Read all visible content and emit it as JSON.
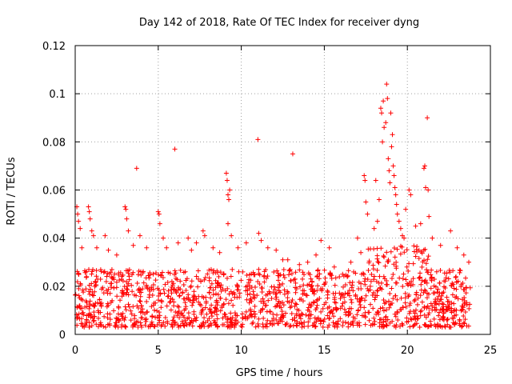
{
  "chart_data": {
    "type": "scatter",
    "title": "Day 142 of 2018, Rate Of TEC Index for receiver dyng",
    "xlabel": "GPS time / hours",
    "ylabel": "ROTI / TECUs",
    "xlim": [
      0,
      25
    ],
    "ylim": [
      0,
      0.12
    ],
    "xticks": [
      0,
      5,
      10,
      15,
      20,
      25
    ],
    "yticks": [
      0,
      0.02,
      0.04,
      0.06,
      0.08,
      0.1,
      0.12
    ],
    "xtick_labels": [
      "0",
      "5",
      "10",
      "15",
      "20",
      "25"
    ],
    "ytick_labels": [
      "0",
      "0.02",
      "0.04",
      "0.06",
      "0.08",
      "0.1",
      "0.12"
    ],
    "grid": true,
    "marker": "+",
    "series_color": "#ff0000",
    "background_cloud": {
      "x_range": [
        0,
        23.8
      ],
      "baseline_range": [
        0.003,
        0.027
      ],
      "note": "dense band of points between ~0.003 and ~0.027 across the whole day"
    },
    "series": [
      {
        "name": "ROTI",
        "points": [
          [
            0.1,
            0.053
          ],
          [
            0.15,
            0.05
          ],
          [
            0.2,
            0.047
          ],
          [
            0.3,
            0.044
          ],
          [
            0.4,
            0.036
          ],
          [
            0.8,
            0.053
          ],
          [
            0.85,
            0.051
          ],
          [
            0.9,
            0.048
          ],
          [
            1.0,
            0.043
          ],
          [
            1.1,
            0.041
          ],
          [
            1.3,
            0.036
          ],
          [
            1.8,
            0.041
          ],
          [
            2.0,
            0.035
          ],
          [
            2.5,
            0.033
          ],
          [
            3.0,
            0.053
          ],
          [
            3.05,
            0.052
          ],
          [
            3.1,
            0.048
          ],
          [
            3.2,
            0.043
          ],
          [
            3.5,
            0.037
          ],
          [
            3.7,
            0.069
          ],
          [
            3.9,
            0.041
          ],
          [
            4.3,
            0.036
          ],
          [
            5.0,
            0.051
          ],
          [
            5.05,
            0.05
          ],
          [
            5.1,
            0.046
          ],
          [
            5.3,
            0.04
          ],
          [
            5.5,
            0.036
          ],
          [
            6.0,
            0.077
          ],
          [
            6.2,
            0.038
          ],
          [
            6.8,
            0.04
          ],
          [
            7.0,
            0.035
          ],
          [
            7.3,
            0.038
          ],
          [
            7.7,
            0.043
          ],
          [
            7.8,
            0.041
          ],
          [
            8.3,
            0.036
          ],
          [
            8.7,
            0.034
          ],
          [
            9.1,
            0.067
          ],
          [
            9.15,
            0.064
          ],
          [
            9.2,
            0.058
          ],
          [
            9.25,
            0.056
          ],
          [
            9.3,
            0.06
          ],
          [
            9.2,
            0.046
          ],
          [
            9.4,
            0.041
          ],
          [
            9.8,
            0.036
          ],
          [
            10.3,
            0.038
          ],
          [
            11.0,
            0.081
          ],
          [
            11.05,
            0.042
          ],
          [
            11.2,
            0.039
          ],
          [
            11.6,
            0.036
          ],
          [
            12.1,
            0.035
          ],
          [
            12.5,
            0.031
          ],
          [
            12.8,
            0.031
          ],
          [
            13.1,
            0.075
          ],
          [
            13.5,
            0.029
          ],
          [
            14.0,
            0.03
          ],
          [
            14.5,
            0.033
          ],
          [
            14.8,
            0.039
          ],
          [
            15.3,
            0.036
          ],
          [
            15.6,
            0.028
          ],
          [
            16.1,
            0.025
          ],
          [
            16.6,
            0.03
          ],
          [
            17.0,
            0.04
          ],
          [
            17.2,
            0.034
          ],
          [
            17.4,
            0.066
          ],
          [
            17.45,
            0.064
          ],
          [
            17.5,
            0.055
          ],
          [
            17.6,
            0.05
          ],
          [
            18.0,
            0.044
          ],
          [
            18.1,
            0.064
          ],
          [
            18.2,
            0.047
          ],
          [
            18.3,
            0.056
          ],
          [
            18.4,
            0.094
          ],
          [
            18.45,
            0.092
          ],
          [
            18.5,
            0.08
          ],
          [
            18.55,
            0.097
          ],
          [
            18.6,
            0.086
          ],
          [
            18.7,
            0.088
          ],
          [
            18.75,
            0.104
          ],
          [
            18.8,
            0.098
          ],
          [
            18.85,
            0.073
          ],
          [
            18.9,
            0.068
          ],
          [
            18.95,
            0.063
          ],
          [
            19.0,
            0.092
          ],
          [
            19.05,
            0.078
          ],
          [
            19.1,
            0.083
          ],
          [
            19.15,
            0.07
          ],
          [
            19.2,
            0.066
          ],
          [
            19.25,
            0.061
          ],
          [
            19.3,
            0.058
          ],
          [
            19.35,
            0.054
          ],
          [
            19.4,
            0.05
          ],
          [
            19.5,
            0.047
          ],
          [
            19.6,
            0.044
          ],
          [
            19.7,
            0.041
          ],
          [
            19.8,
            0.04
          ],
          [
            19.9,
            0.052
          ],
          [
            20.1,
            0.06
          ],
          [
            20.2,
            0.058
          ],
          [
            20.5,
            0.045
          ],
          [
            20.8,
            0.046
          ],
          [
            21.0,
            0.069
          ],
          [
            21.05,
            0.07
          ],
          [
            21.1,
            0.061
          ],
          [
            21.2,
            0.09
          ],
          [
            21.25,
            0.06
          ],
          [
            21.3,
            0.049
          ],
          [
            21.5,
            0.04
          ],
          [
            22.0,
            0.037
          ],
          [
            22.6,
            0.043
          ],
          [
            23.0,
            0.036
          ],
          [
            23.4,
            0.033
          ],
          [
            23.7,
            0.03
          ]
        ]
      }
    ]
  }
}
